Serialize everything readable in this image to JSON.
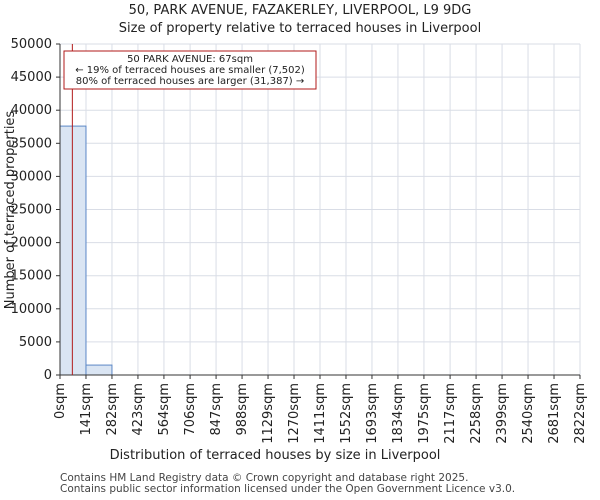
{
  "chart_data": {
    "type": "bar",
    "title_lines": [
      "50, PARK AVENUE, FAZAKERLEY, LIVERPOOL, L9 9DG",
      "Size of property relative to terraced houses in Liverpool"
    ],
    "xlabel": "Distribution of terraced houses by size in Liverpool",
    "ylabel": "Number of terraced properties",
    "ylim": [
      0,
      50000
    ],
    "yticks": [
      0,
      5000,
      10000,
      15000,
      20000,
      25000,
      30000,
      35000,
      40000,
      45000,
      50000
    ],
    "ytick_labels": [
      "0",
      "5000",
      "10000",
      "15000",
      "20000",
      "25000",
      "30000",
      "35000",
      "40000",
      "45000",
      "50000"
    ],
    "x_range": [
      0,
      2822
    ],
    "xtick_values": [
      0,
      141,
      282,
      423,
      564,
      706,
      847,
      988,
      1129,
      1270,
      1411,
      1552,
      1693,
      1834,
      1975,
      2117,
      2258,
      2399,
      2540,
      2681,
      2822
    ],
    "xtick_labels": [
      "0sqm",
      "141sqm",
      "282sqm",
      "423sqm",
      "564sqm",
      "706sqm",
      "847sqm",
      "988sqm",
      "1129sqm",
      "1270sqm",
      "1411sqm",
      "1552sqm",
      "1693sqm",
      "1834sqm",
      "1975sqm",
      "2117sqm",
      "2258sqm",
      "2399sqm",
      "2540sqm",
      "2681sqm",
      "2822sqm"
    ],
    "bins": [
      {
        "start": 0,
        "end": 141,
        "value": 37600
      },
      {
        "start": 141,
        "end": 282,
        "value": 1500
      },
      {
        "start": 282,
        "end": 423,
        "value": 0
      },
      {
        "start": 423,
        "end": 564,
        "value": 0
      },
      {
        "start": 564,
        "end": 706,
        "value": 0
      },
      {
        "start": 706,
        "end": 847,
        "value": 0
      },
      {
        "start": 847,
        "end": 988,
        "value": 0
      },
      {
        "start": 988,
        "end": 1129,
        "value": 0
      },
      {
        "start": 1129,
        "end": 1270,
        "value": 0
      },
      {
        "start": 1270,
        "end": 1411,
        "value": 0
      },
      {
        "start": 1411,
        "end": 1552,
        "value": 0
      },
      {
        "start": 1552,
        "end": 1693,
        "value": 0
      },
      {
        "start": 1693,
        "end": 1834,
        "value": 0
      },
      {
        "start": 1834,
        "end": 1975,
        "value": 0
      },
      {
        "start": 1975,
        "end": 2117,
        "value": 0
      },
      {
        "start": 2117,
        "end": 2258,
        "value": 0
      },
      {
        "start": 2258,
        "end": 2399,
        "value": 0
      },
      {
        "start": 2399,
        "end": 2540,
        "value": 0
      },
      {
        "start": 2540,
        "end": 2681,
        "value": 0
      },
      {
        "start": 2681,
        "end": 2822,
        "value": 0
      }
    ],
    "marker": {
      "value": 67
    },
    "annotation": {
      "lines": [
        "50 PARK AVENUE: 67sqm",
        "← 19% of terraced houses are smaller (7,502)",
        "80% of terraced houses are larger (31,387) →"
      ]
    },
    "grid": true
  },
  "colors": {
    "bar_fill": "#dae5f3",
    "bar_stroke": "#5b87c6",
    "marker": "#b11a1a",
    "grid": "#d9dde6"
  },
  "footer": {
    "line1": "Contains HM Land Registry data © Crown copyright and database right 2025.",
    "line2": "Contains public sector information licensed under the Open Government Licence v3.0."
  }
}
